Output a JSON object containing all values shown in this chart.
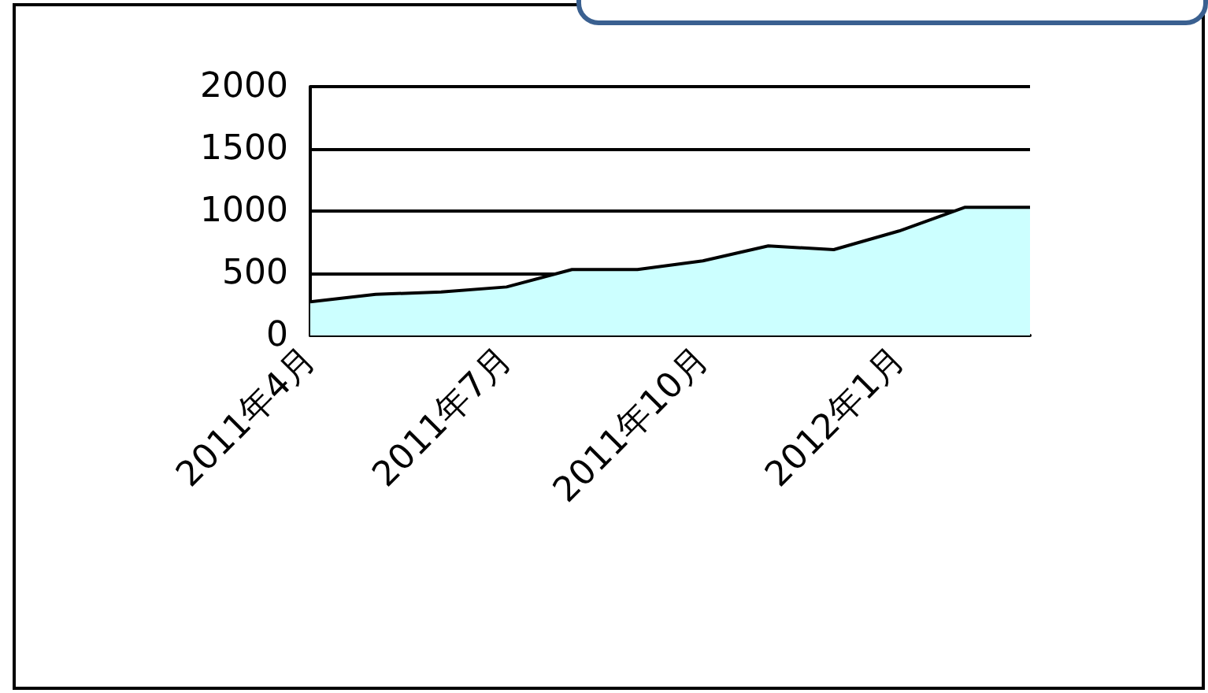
{
  "chart_data": {
    "type": "area",
    "categories": [
      "2011年4月",
      null,
      null,
      "2011年7月",
      null,
      null,
      "2011年10月",
      null,
      null,
      "2012年1月",
      null,
      null
    ],
    "series": [
      {
        "color": "#ccffff",
        "values": [
          270,
          330,
          350,
          390,
          530,
          530,
          600,
          720,
          690,
          840,
          1030,
          1030
        ]
      }
    ],
    "ylim": [
      0,
      2000
    ],
    "yticks": [
      0,
      500,
      1000,
      1500,
      2000
    ],
    "grid": "y",
    "marker": "none",
    "line_style": "solid"
  }
}
